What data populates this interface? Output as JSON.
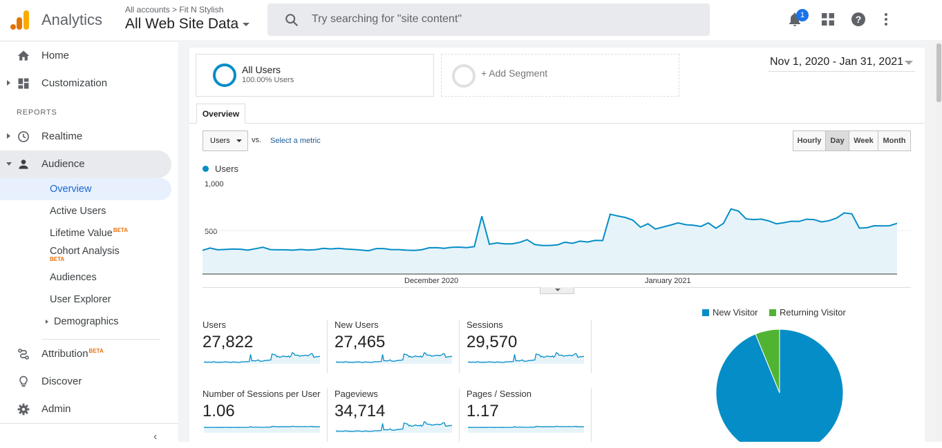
{
  "header": {
    "app_name": "Analytics",
    "account_path": "All accounts > Fit N Stylish",
    "property": "All Web Site Data",
    "search_placeholder": "Try searching for \"site content\"",
    "notification_count": "1"
  },
  "sidebar": {
    "home": "Home",
    "customization": "Customization",
    "reports_heading": "REPORTS",
    "realtime": "Realtime",
    "audience": "Audience",
    "audience_items": {
      "overview": "Overview",
      "active_users": "Active Users",
      "lifetime_value": "Lifetime Value",
      "cohort_analysis": "Cohort Analysis",
      "audiences": "Audiences",
      "user_explorer": "User Explorer",
      "demographics": "Demographics"
    },
    "beta_label": "BETA",
    "attribution": "Attribution",
    "discover": "Discover",
    "admin": "Admin"
  },
  "segments": {
    "all_users_title": "All Users",
    "all_users_sub": "100.00% Users",
    "add_segment": "+ Add Segment"
  },
  "date_range": "Nov 1, 2020 - Jan 31, 2021",
  "tabs": {
    "overview": "Overview"
  },
  "controls": {
    "metric": "Users",
    "vs": "vs.",
    "select_metric": "Select a metric",
    "granularity": [
      "Hourly",
      "Day",
      "Week",
      "Month"
    ],
    "selected_granularity": "Day"
  },
  "colors": {
    "series": "#058dc7",
    "fill": "#e6f4fa",
    "new_visitor": "#058dc7",
    "returning_visitor": "#50b432",
    "accent": "#1a73e8"
  },
  "chart_data": [
    {
      "type": "area",
      "series": [
        {
          "name": "Users",
          "values": [
            262,
            288,
            268,
            272,
            276,
            275,
            264,
            280,
            296,
            270,
            268,
            268,
            264,
            272,
            266,
            270,
            284,
            278,
            284,
            276,
            272,
            266,
            258,
            282,
            282,
            270,
            270,
            264,
            262,
            268,
            290,
            292,
            284,
            296,
            298,
            292,
            304,
            640,
            330,
            344,
            334,
            334,
            350,
            380,
            326,
            316,
            316,
            322,
            352,
            340,
            364,
            354,
            372,
            370,
            662,
            642,
            626,
            596,
            518,
            556,
            498,
            520,
            542,
            566,
            546,
            540,
            526,
            566,
            506,
            560,
            720,
            696,
            610,
            602,
            608,
            588,
            556,
            568,
            584,
            582,
            606,
            602,
            576,
            590,
            620,
            676,
            666,
            508,
            512,
            534,
            532,
            534,
            560
          ]
        }
      ],
      "x": "2020-11-01 .. 2021-01-31 (daily)",
      "x_ticks": [
        "December 2020",
        "January 2021"
      ],
      "y_ticks": [
        "500",
        "1,000"
      ],
      "ylim": [
        0,
        1000
      ]
    },
    {
      "type": "pie",
      "categories": [
        "New Visitor",
        "Returning Visitor"
      ],
      "values": [
        93.8,
        6.2
      ]
    }
  ],
  "kpis": [
    {
      "name": "Users",
      "value": "27,822"
    },
    {
      "name": "New Users",
      "value": "27,465"
    },
    {
      "name": "Sessions",
      "value": "29,570"
    },
    {
      "name": "Number of Sessions per User",
      "value": "1.06"
    },
    {
      "name": "Pageviews",
      "value": "34,714"
    },
    {
      "name": "Pages / Session",
      "value": "1.17"
    }
  ]
}
